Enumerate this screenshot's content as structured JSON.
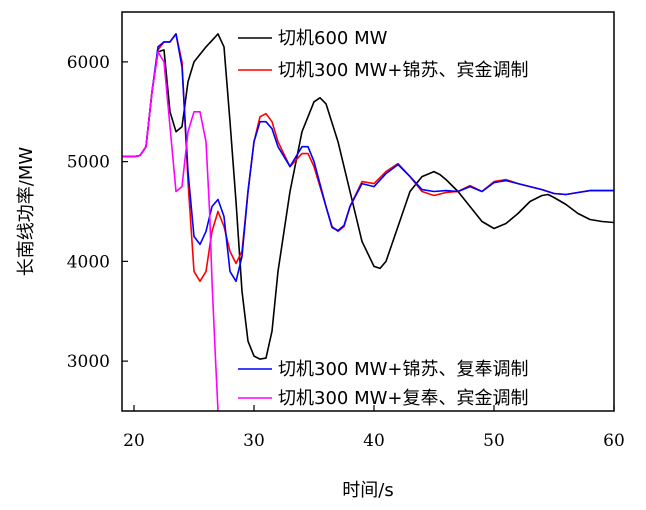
{
  "chart_data": {
    "type": "line",
    "title": "",
    "xlabel": "时间/s",
    "ylabel": "长南线功率/MW",
    "xlim": [
      19,
      60
    ],
    "ylim": [
      2500,
      6500
    ],
    "x_ticks": [
      20,
      30,
      40,
      50,
      60
    ],
    "y_ticks": [
      3000,
      4000,
      5000,
      6000
    ],
    "grid": false,
    "series": [
      {
        "name": "切机600 MW",
        "color": "#000000",
        "points": [
          [
            19,
            5050
          ],
          [
            20,
            5050
          ],
          [
            20.5,
            5060
          ],
          [
            21,
            5150
          ],
          [
            21.5,
            5700
          ],
          [
            22,
            6100
          ],
          [
            22.5,
            6120
          ],
          [
            23,
            5500
          ],
          [
            23.5,
            5300
          ],
          [
            24,
            5350
          ],
          [
            24.5,
            5800
          ],
          [
            25,
            6000
          ],
          [
            26,
            6150
          ],
          [
            27,
            6280
          ],
          [
            27.5,
            6150
          ],
          [
            28,
            5400
          ],
          [
            28.5,
            4600
          ],
          [
            29,
            3700
          ],
          [
            29.5,
            3200
          ],
          [
            30,
            3050
          ],
          [
            30.5,
            3020
          ],
          [
            31,
            3030
          ],
          [
            31.5,
            3300
          ],
          [
            32,
            3900
          ],
          [
            33,
            4700
          ],
          [
            34,
            5300
          ],
          [
            35,
            5600
          ],
          [
            35.5,
            5640
          ],
          [
            36,
            5580
          ],
          [
            37,
            5200
          ],
          [
            38,
            4700
          ],
          [
            39,
            4200
          ],
          [
            40,
            3950
          ],
          [
            40.5,
            3930
          ],
          [
            41,
            4000
          ],
          [
            42,
            4350
          ],
          [
            43,
            4700
          ],
          [
            44,
            4850
          ],
          [
            45,
            4900
          ],
          [
            45.5,
            4870
          ],
          [
            46,
            4820
          ],
          [
            47,
            4700
          ],
          [
            48,
            4550
          ],
          [
            49,
            4400
          ],
          [
            50,
            4330
          ],
          [
            51,
            4380
          ],
          [
            52,
            4480
          ],
          [
            53,
            4600
          ],
          [
            54,
            4660
          ],
          [
            54.5,
            4670
          ],
          [
            55,
            4640
          ],
          [
            56,
            4570
          ],
          [
            57,
            4480
          ],
          [
            58,
            4420
          ],
          [
            59,
            4400
          ],
          [
            60,
            4390
          ]
        ]
      },
      {
        "name": "切机300 MW+锦苏、宾金调制",
        "color": "#ff0000",
        "points": [
          [
            19,
            5050
          ],
          [
            20,
            5050
          ],
          [
            20.5,
            5060
          ],
          [
            21,
            5150
          ],
          [
            21.5,
            5700
          ],
          [
            22,
            6120
          ],
          [
            22.5,
            6200
          ],
          [
            23,
            6200
          ],
          [
            23.5,
            6280
          ],
          [
            24,
            6000
          ],
          [
            24.5,
            4800
          ],
          [
            25,
            3900
          ],
          [
            25.5,
            3800
          ],
          [
            26,
            3900
          ],
          [
            26.5,
            4300
          ],
          [
            27,
            4500
          ],
          [
            27.5,
            4350
          ],
          [
            28,
            4100
          ],
          [
            28.5,
            3980
          ],
          [
            29,
            4100
          ],
          [
            29.5,
            4700
          ],
          [
            30,
            5200
          ],
          [
            30.5,
            5450
          ],
          [
            31,
            5480
          ],
          [
            31.5,
            5400
          ],
          [
            32,
            5200
          ],
          [
            33,
            4950
          ],
          [
            34,
            5080
          ],
          [
            34.5,
            5080
          ],
          [
            35,
            4950
          ],
          [
            36,
            4550
          ],
          [
            36.5,
            4350
          ],
          [
            37,
            4300
          ],
          [
            37.5,
            4350
          ],
          [
            38,
            4550
          ],
          [
            39,
            4800
          ],
          [
            40,
            4780
          ],
          [
            41,
            4900
          ],
          [
            42,
            4980
          ],
          [
            43,
            4850
          ],
          [
            44,
            4700
          ],
          [
            45,
            4660
          ],
          [
            46,
            4690
          ],
          [
            47,
            4700
          ],
          [
            48,
            4760
          ],
          [
            49,
            4700
          ],
          [
            50,
            4800
          ],
          [
            51,
            4820
          ],
          [
            52,
            4780
          ],
          [
            53,
            4750
          ],
          [
            54,
            4720
          ],
          [
            55,
            4680
          ],
          [
            56,
            4670
          ],
          [
            57,
            4690
          ],
          [
            58,
            4710
          ],
          [
            59,
            4710
          ],
          [
            60,
            4710
          ]
        ]
      },
      {
        "name": "切机300 MW+锦苏、复奉调制",
        "color": "#0000ff",
        "points": [
          [
            19,
            5050
          ],
          [
            20,
            5050
          ],
          [
            20.5,
            5060
          ],
          [
            21,
            5150
          ],
          [
            21.5,
            5700
          ],
          [
            22,
            6150
          ],
          [
            22.5,
            6200
          ],
          [
            23,
            6200
          ],
          [
            23.5,
            6280
          ],
          [
            24,
            5950
          ],
          [
            24.5,
            4900
          ],
          [
            25,
            4250
          ],
          [
            25.5,
            4170
          ],
          [
            26,
            4300
          ],
          [
            26.5,
            4550
          ],
          [
            27,
            4620
          ],
          [
            27.5,
            4450
          ],
          [
            28,
            3900
          ],
          [
            28.5,
            3800
          ],
          [
            29,
            4050
          ],
          [
            29.5,
            4700
          ],
          [
            30,
            5200
          ],
          [
            30.5,
            5400
          ],
          [
            31,
            5400
          ],
          [
            31.5,
            5330
          ],
          [
            32,
            5150
          ],
          [
            33,
            4950
          ],
          [
            34,
            5150
          ],
          [
            34.5,
            5150
          ],
          [
            35,
            5000
          ],
          [
            36,
            4550
          ],
          [
            36.5,
            4340
          ],
          [
            37,
            4310
          ],
          [
            37.5,
            4360
          ],
          [
            38,
            4550
          ],
          [
            39,
            4780
          ],
          [
            40,
            4750
          ],
          [
            41,
            4880
          ],
          [
            42,
            4970
          ],
          [
            43,
            4850
          ],
          [
            44,
            4720
          ],
          [
            45,
            4700
          ],
          [
            46,
            4710
          ],
          [
            47,
            4700
          ],
          [
            48,
            4750
          ],
          [
            49,
            4700
          ],
          [
            50,
            4790
          ],
          [
            51,
            4810
          ],
          [
            52,
            4780
          ],
          [
            53,
            4750
          ],
          [
            54,
            4720
          ],
          [
            55,
            4680
          ],
          [
            56,
            4670
          ],
          [
            57,
            4690
          ],
          [
            58,
            4710
          ],
          [
            59,
            4710
          ],
          [
            60,
            4710
          ]
        ]
      },
      {
        "name": "切机300 MW+复奉、宾金调制",
        "color": "#ff00ff",
        "points": [
          [
            19,
            5050
          ],
          [
            20,
            5050
          ],
          [
            20.5,
            5060
          ],
          [
            21,
            5150
          ],
          [
            21.5,
            5700
          ],
          [
            22,
            6100
          ],
          [
            22.5,
            6000
          ],
          [
            23,
            5350
          ],
          [
            23.5,
            4700
          ],
          [
            24,
            4750
          ],
          [
            24.5,
            5300
          ],
          [
            25,
            5500
          ],
          [
            25.5,
            5500
          ],
          [
            26,
            5200
          ],
          [
            26.3,
            4500
          ],
          [
            26.5,
            3800
          ],
          [
            26.8,
            3000
          ],
          [
            27,
            2500
          ]
        ]
      }
    ],
    "legend": {
      "top": [
        "切机600 MW",
        "切机300 MW+锦苏、宾金调制"
      ],
      "bottom": [
        "切机300 MW+锦苏、复奉调制",
        "切机300 MW+复奉、宾金调制"
      ]
    }
  }
}
